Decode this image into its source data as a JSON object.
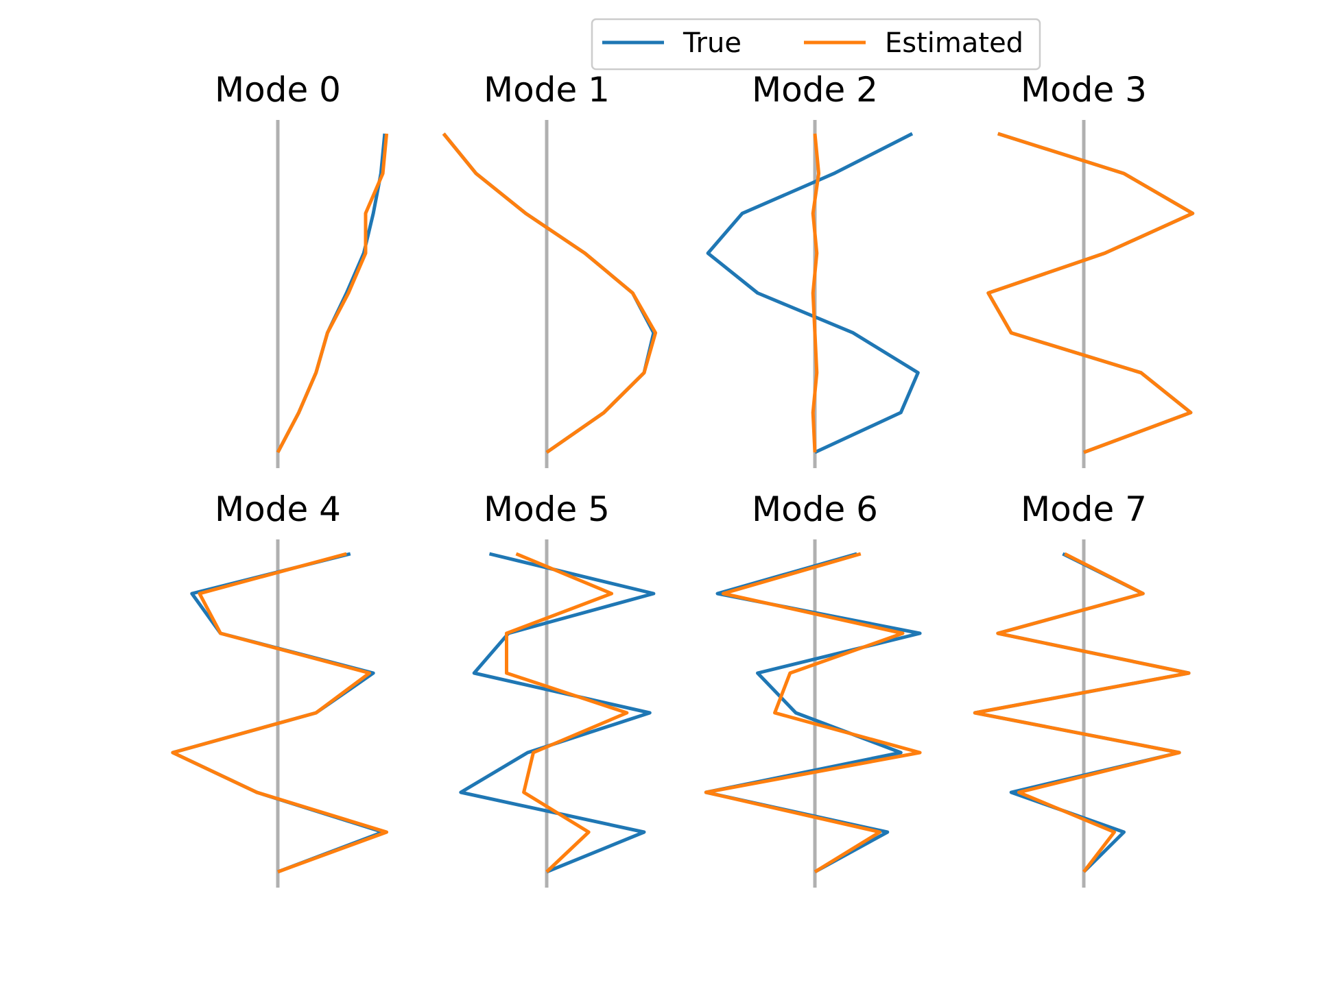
{
  "chart_data": {
    "type": "line",
    "layout": "2x4 grid of small multiples",
    "orientation": "vertical profiles (value on x, node index on y, top to bottom)",
    "grid": false,
    "axes_visible": false,
    "zero_line": true,
    "xlim": [
      -0.6,
      0.6
    ],
    "legend": {
      "position": "top-center",
      "entries": [
        {
          "name": "True",
          "color": "#1f77b4"
        },
        {
          "name": "Estimated",
          "color": "#ff7f0e"
        }
      ]
    },
    "zero_line_color": "#b0b0b0",
    "nodes": [
      0,
      1,
      2,
      3,
      4,
      5,
      6,
      7,
      8
    ],
    "panels": [
      {
        "title": "Mode 0",
        "true": [
          0.56,
          0.54,
          0.5,
          0.45,
          0.36,
          0.26,
          0.2,
          0.11,
          0.0
        ],
        "estimated": [
          0.57,
          0.55,
          0.46,
          0.46,
          0.37,
          0.26,
          0.2,
          0.11,
          0.0
        ]
      },
      {
        "title": "Mode 1",
        "true": [
          -0.54,
          -0.37,
          -0.11,
          0.2,
          0.45,
          0.56,
          0.51,
          0.3,
          0.0
        ],
        "estimated": [
          -0.54,
          -0.37,
          -0.11,
          0.2,
          0.45,
          0.57,
          0.51,
          0.3,
          0.0
        ],
        "panel_xlim": [
          -0.6,
          0.6
        ]
      },
      {
        "title": "Mode 2",
        "true": [
          0.51,
          0.1,
          -0.38,
          -0.56,
          -0.3,
          0.2,
          0.54,
          0.45,
          0.0
        ],
        "estimated": [
          0.0,
          0.02,
          -0.01,
          0.01,
          -0.01,
          0.0,
          0.01,
          -0.01,
          0.0
        ]
      },
      {
        "title": "Mode 3",
        "true": [
          -0.45,
          0.21,
          0.57,
          0.11,
          -0.5,
          -0.38,
          0.3,
          0.56,
          0.0
        ],
        "estimated": [
          -0.45,
          0.21,
          0.57,
          0.11,
          -0.5,
          -0.38,
          0.3,
          0.56,
          0.0
        ]
      },
      {
        "title": "Mode 4",
        "true": [
          0.38,
          -0.45,
          -0.3,
          0.5,
          0.2,
          -0.55,
          -0.11,
          0.55,
          0.0
        ],
        "estimated": [
          0.36,
          -0.41,
          -0.3,
          0.48,
          0.2,
          -0.55,
          -0.11,
          0.57,
          0.0
        ]
      },
      {
        "title": "Mode 5",
        "true": [
          -0.3,
          0.56,
          -0.2,
          -0.38,
          0.54,
          -0.1,
          -0.45,
          0.51,
          0.0
        ],
        "estimated": [
          -0.16,
          0.34,
          -0.21,
          -0.21,
          0.42,
          -0.07,
          -0.12,
          0.22,
          0.0
        ],
        "panel_xlim": [
          -0.6,
          0.6
        ]
      },
      {
        "title": "Mode 6",
        "true": [
          0.22,
          -0.51,
          0.55,
          -0.3,
          -0.1,
          0.45,
          -0.57,
          0.38,
          0.0
        ],
        "estimated": [
          0.24,
          -0.48,
          0.46,
          -0.13,
          -0.21,
          0.55,
          -0.57,
          0.34,
          0.0
        ]
      },
      {
        "title": "Mode 7",
        "true": [
          -0.11,
          0.31,
          -0.45,
          0.55,
          -0.57,
          0.5,
          -0.38,
          0.21,
          0.0
        ],
        "estimated": [
          -0.1,
          0.31,
          -0.45,
          0.55,
          -0.57,
          0.5,
          -0.34,
          0.16,
          0.0
        ]
      }
    ]
  }
}
